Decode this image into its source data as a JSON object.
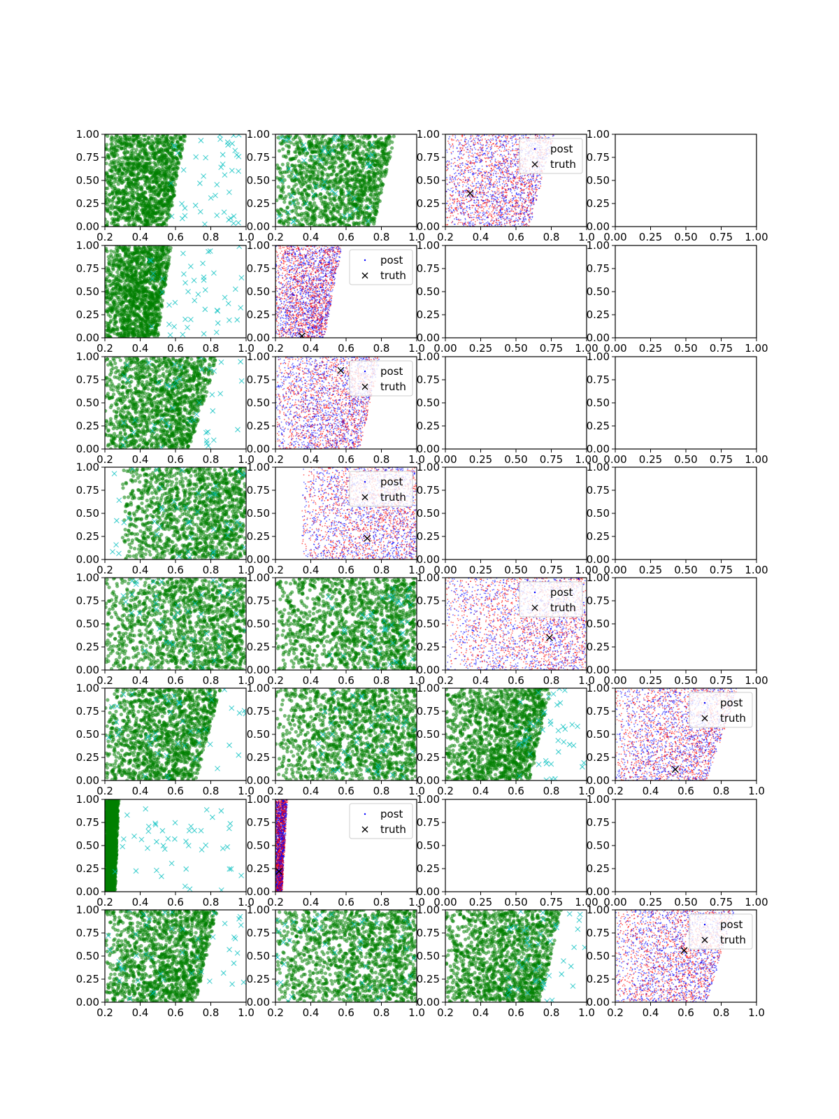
{
  "figure": {
    "rows": 8,
    "cols": 4,
    "legend_labels": {
      "post": "post",
      "truth": "truth"
    },
    "colors": {
      "green_points": "#008000",
      "cyan_crosses": "#00bfbf",
      "post_blue": "#0000ff",
      "post_red": "#ff0000",
      "truth_marker": "#000000"
    }
  },
  "chart_data": {
    "type": "scatter",
    "layout": "8x4 grid of scatter subplots",
    "panels": [
      {
        "row": 0,
        "col": 0,
        "kind": "green",
        "xlim": [
          0.2,
          1.0
        ],
        "ylim": [
          0,
          1
        ],
        "xticks": [
          "0.2",
          "0.4",
          "0.6",
          "0.8",
          "1.0"
        ],
        "yticks": [
          "0.00",
          "0.25",
          "0.50",
          "0.75",
          "1.00"
        ],
        "band": {
          "x_left": 0.2,
          "x_right_bottom": 0.56,
          "x_right_top": 0.66
        },
        "crosses_x": [
          0.55,
          0.98
        ]
      },
      {
        "row": 0,
        "col": 1,
        "kind": "green",
        "xlim": [
          0.2,
          1.0
        ],
        "ylim": [
          0,
          1
        ],
        "xticks": [
          "0.2",
          "0.4",
          "0.6",
          "0.8",
          "1.0"
        ],
        "yticks": [
          "0.00",
          "0.25",
          "0.50",
          "0.75",
          "1.00"
        ],
        "band": {
          "x_left": 0.2,
          "x_right_bottom": 0.76,
          "x_right_top": 0.88
        },
        "crosses_x": [
          0.22,
          0.75
        ]
      },
      {
        "row": 0,
        "col": 2,
        "kind": "post",
        "xlim": [
          0.2,
          1.0
        ],
        "ylim": [
          0,
          1
        ],
        "xticks": [
          "0.2",
          "0.4",
          "0.6",
          "0.8",
          "1.0"
        ],
        "yticks": [
          "0.00",
          "0.25",
          "0.50",
          "0.75",
          "1.00"
        ],
        "band": {
          "x_left": 0.2,
          "x_right_bottom": 0.68,
          "x_right_top": 0.82
        },
        "truth": {
          "x": 0.34,
          "y": 0.36
        },
        "legend": "upper-right"
      },
      {
        "row": 0,
        "col": 3,
        "kind": "empty",
        "xlim": [
          0,
          1
        ],
        "ylim": [
          0,
          1
        ],
        "xticks": [
          "0.00",
          "0.25",
          "0.50",
          "0.75",
          "1.00"
        ],
        "yticks": [
          "0.00",
          "0.25",
          "0.50",
          "0.75",
          "1.00"
        ]
      },
      {
        "row": 1,
        "col": 0,
        "kind": "green",
        "xlim": [
          0.2,
          1.0
        ],
        "ylim": [
          0,
          1
        ],
        "xticks": [
          "0.2",
          "0.4",
          "0.6",
          "0.8",
          "1.0"
        ],
        "yticks": [
          "0.00",
          "0.25",
          "0.50",
          "0.75",
          "1.00"
        ],
        "band": {
          "x_left": 0.2,
          "x_right_bottom": 0.5,
          "x_right_top": 0.58
        },
        "crosses_x": [
          0.45,
          0.98
        ]
      },
      {
        "row": 1,
        "col": 1,
        "kind": "post",
        "xlim": [
          0.2,
          1.0
        ],
        "ylim": [
          0,
          1
        ],
        "xticks": [
          "0.2",
          "0.4",
          "0.6",
          "0.8",
          "1.0"
        ],
        "yticks": [
          "0.00",
          "0.25",
          "0.50",
          "0.75",
          "1.00"
        ],
        "band": {
          "x_left": 0.2,
          "x_right_bottom": 0.48,
          "x_right_top": 0.58
        },
        "truth": {
          "x": 0.35,
          "y": 0.02
        },
        "legend": "upper-right"
      },
      {
        "row": 1,
        "col": 2,
        "kind": "empty",
        "xlim": [
          0,
          1
        ],
        "ylim": [
          0,
          1
        ],
        "xticks": [
          "0.00",
          "0.25",
          "0.50",
          "0.75",
          "1.00"
        ],
        "yticks": [
          "0.00",
          "0.25",
          "0.50",
          "0.75",
          "1.00"
        ]
      },
      {
        "row": 1,
        "col": 3,
        "kind": "empty",
        "xlim": [
          0,
          1
        ],
        "ylim": [
          0,
          1
        ],
        "xticks": [
          "0.00",
          "0.25",
          "0.50",
          "0.75",
          "1.00"
        ],
        "yticks": [
          "0.00",
          "0.25",
          "0.50",
          "0.75",
          "1.00"
        ]
      },
      {
        "row": 2,
        "col": 0,
        "kind": "green",
        "xlim": [
          0.2,
          1.0
        ],
        "ylim": [
          0,
          1
        ],
        "xticks": [
          "0.2",
          "0.4",
          "0.6",
          "0.8",
          "1.0"
        ],
        "yticks": [
          "0.00",
          "0.25",
          "0.50",
          "0.75",
          "1.00"
        ],
        "band": {
          "x_left": 0.2,
          "x_right_bottom": 0.68,
          "x_right_top": 0.84
        },
        "crosses_x": [
          0.3,
          0.98
        ]
      },
      {
        "row": 2,
        "col": 1,
        "kind": "post",
        "xlim": [
          0.2,
          1.0
        ],
        "ylim": [
          0,
          1
        ],
        "xticks": [
          "0.2",
          "0.4",
          "0.6",
          "0.8",
          "1.0"
        ],
        "yticks": [
          "0.00",
          "0.25",
          "0.50",
          "0.75",
          "1.00"
        ],
        "band": {
          "x_left": 0.2,
          "x_right_bottom": 0.68,
          "x_right_top": 0.8
        },
        "truth": {
          "x": 0.57,
          "y": 0.85
        },
        "legend": "upper-right"
      },
      {
        "row": 2,
        "col": 2,
        "kind": "empty",
        "xlim": [
          0,
          1
        ],
        "ylim": [
          0,
          1
        ],
        "xticks": [
          "0.00",
          "0.25",
          "0.50",
          "0.75",
          "1.00"
        ],
        "yticks": [
          "0.00",
          "0.25",
          "0.50",
          "0.75",
          "1.00"
        ]
      },
      {
        "row": 2,
        "col": 3,
        "kind": "empty",
        "xlim": [
          0,
          1
        ],
        "ylim": [
          0,
          1
        ],
        "xticks": [
          "0.00",
          "0.25",
          "0.50",
          "0.75",
          "1.00"
        ],
        "yticks": [
          "0.00",
          "0.25",
          "0.50",
          "0.75",
          "1.00"
        ]
      },
      {
        "row": 3,
        "col": 0,
        "kind": "green",
        "xlim": [
          0.2,
          1.0
        ],
        "ylim": [
          0,
          1
        ],
        "xticks": [
          "0.2",
          "0.4",
          "0.6",
          "0.8",
          "1.0"
        ],
        "yticks": [
          "0.00",
          "0.25",
          "0.50",
          "0.75",
          "1.00"
        ],
        "band": {
          "x_left": 0.3,
          "x_right_bottom": 1.0,
          "x_right_top": 1.0
        },
        "crosses_x": [
          0.2,
          1.0
        ]
      },
      {
        "row": 3,
        "col": 1,
        "kind": "post",
        "xlim": [
          0.2,
          1.0
        ],
        "ylim": [
          0,
          1
        ],
        "xticks": [
          "0.2",
          "0.4",
          "0.6",
          "0.8",
          "1.0"
        ],
        "yticks": [
          "0.00",
          "0.25",
          "0.50",
          "0.75",
          "1.00"
        ],
        "band": {
          "x_left": 0.35,
          "x_right_bottom": 1.0,
          "x_right_top": 1.0
        },
        "truth": {
          "x": 0.72,
          "y": 0.23
        },
        "legend": "upper-right"
      },
      {
        "row": 3,
        "col": 2,
        "kind": "empty",
        "xlim": [
          0,
          1
        ],
        "ylim": [
          0,
          1
        ],
        "xticks": [
          "0.00",
          "0.25",
          "0.50",
          "0.75",
          "1.00"
        ],
        "yticks": [
          "0.00",
          "0.25",
          "0.50",
          "0.75",
          "1.00"
        ]
      },
      {
        "row": 3,
        "col": 3,
        "kind": "empty",
        "xlim": [
          0,
          1
        ],
        "ylim": [
          0,
          1
        ],
        "xticks": [
          "0.00",
          "0.25",
          "0.50",
          "0.75",
          "1.00"
        ],
        "yticks": [
          "0.00",
          "0.25",
          "0.50",
          "0.75",
          "1.00"
        ]
      },
      {
        "row": 4,
        "col": 0,
        "kind": "green",
        "xlim": [
          0.2,
          1.0
        ],
        "ylim": [
          0,
          1
        ],
        "xticks": [
          "0.2",
          "0.4",
          "0.6",
          "0.8",
          "1.0"
        ],
        "yticks": [
          "0.00",
          "0.25",
          "0.50",
          "0.75",
          "1.00"
        ],
        "band": {
          "x_left": 0.2,
          "x_right_bottom": 1.0,
          "x_right_top": 1.0
        },
        "crosses_x": [
          0.3,
          1.0
        ]
      },
      {
        "row": 4,
        "col": 1,
        "kind": "green",
        "xlim": [
          0.2,
          1.0
        ],
        "ylim": [
          0,
          1
        ],
        "xticks": [
          "0.2",
          "0.4",
          "0.6",
          "0.8",
          "1.0"
        ],
        "yticks": [
          "0.00",
          "0.25",
          "0.50",
          "0.75",
          "1.00"
        ],
        "band": {
          "x_left": 0.2,
          "x_right_bottom": 1.0,
          "x_right_top": 1.0
        },
        "crosses_x": [
          0.5,
          1.0
        ]
      },
      {
        "row": 4,
        "col": 2,
        "kind": "post",
        "xlim": [
          0.2,
          1.0
        ],
        "ylim": [
          0,
          1
        ],
        "xticks": [
          "0.2",
          "0.4",
          "0.6",
          "0.8",
          "1.0"
        ],
        "yticks": [
          "0.00",
          "0.25",
          "0.50",
          "0.75",
          "1.00"
        ],
        "band": {
          "x_left": 0.2,
          "x_right_bottom": 1.0,
          "x_right_top": 1.0
        },
        "truth": {
          "x": 0.79,
          "y": 0.35
        },
        "legend": "upper-right"
      },
      {
        "row": 4,
        "col": 3,
        "kind": "empty",
        "xlim": [
          0,
          1
        ],
        "ylim": [
          0,
          1
        ],
        "xticks": [
          "0.00",
          "0.25",
          "0.50",
          "0.75",
          "1.00"
        ],
        "yticks": [
          "0.00",
          "0.25",
          "0.50",
          "0.75",
          "1.00"
        ]
      },
      {
        "row": 5,
        "col": 0,
        "kind": "green",
        "xlim": [
          0.2,
          1.0
        ],
        "ylim": [
          0,
          1
        ],
        "xticks": [
          "0.2",
          "0.4",
          "0.6",
          "0.8",
          "1.0"
        ],
        "yticks": [
          "0.00",
          "0.25",
          "0.50",
          "0.75",
          "1.00"
        ],
        "band": {
          "x_left": 0.2,
          "x_right_bottom": 0.72,
          "x_right_top": 0.86
        },
        "crosses_x": [
          0.2,
          1.0
        ]
      },
      {
        "row": 5,
        "col": 1,
        "kind": "green",
        "xlim": [
          0.2,
          1.0
        ],
        "ylim": [
          0,
          1
        ],
        "xticks": [
          "0.2",
          "0.4",
          "0.6",
          "0.8",
          "1.0"
        ],
        "yticks": [
          "0.00",
          "0.25",
          "0.50",
          "0.75",
          "1.00"
        ],
        "band": {
          "x_left": 0.2,
          "x_right_bottom": 1.0,
          "x_right_top": 1.0
        },
        "crosses_x": [
          0.4,
          1.0
        ]
      },
      {
        "row": 5,
        "col": 2,
        "kind": "green",
        "xlim": [
          0.2,
          1.0
        ],
        "ylim": [
          0,
          1
        ],
        "xticks": [
          "0.2",
          "0.4",
          "0.6",
          "0.8",
          "1.0"
        ],
        "yticks": [
          "0.00",
          "0.25",
          "0.50",
          "0.75",
          "1.00"
        ],
        "band": {
          "x_left": 0.2,
          "x_right_bottom": 0.68,
          "x_right_top": 0.8
        },
        "crosses_x": [
          0.6,
          1.0
        ]
      },
      {
        "row": 5,
        "col": 3,
        "kind": "post",
        "xlim": [
          0.2,
          1.0
        ],
        "ylim": [
          0,
          1
        ],
        "xticks": [
          "0.2",
          "0.4",
          "0.6",
          "0.8",
          "1.0"
        ],
        "yticks": [
          "0.00",
          "0.25",
          "0.50",
          "0.75",
          "1.00"
        ],
        "band": {
          "x_left": 0.2,
          "x_right_bottom": 0.72,
          "x_right_top": 0.9
        },
        "truth": {
          "x": 0.54,
          "y": 0.12
        },
        "legend": "upper-right"
      },
      {
        "row": 6,
        "col": 0,
        "kind": "green",
        "xlim": [
          0.2,
          1.0
        ],
        "ylim": [
          0,
          1
        ],
        "xticks": [
          "0.2",
          "0.4",
          "0.6",
          "0.8",
          "1.0"
        ],
        "yticks": [
          "0.00",
          "0.25",
          "0.50",
          "0.75",
          "1.00"
        ],
        "band": {
          "x_left": 0.2,
          "x_right_bottom": 0.26,
          "x_right_top": 0.28
        },
        "crosses_x": [
          0.25,
          1.0
        ]
      },
      {
        "row": 6,
        "col": 1,
        "kind": "post",
        "xlim": [
          0.2,
          1.0
        ],
        "ylim": [
          0,
          1
        ],
        "xticks": [
          "0.2",
          "0.4",
          "0.6",
          "0.8",
          "1.0"
        ],
        "yticks": [
          "0.00",
          "0.25",
          "0.50",
          "0.75",
          "1.00"
        ],
        "band": {
          "x_left": 0.2,
          "x_right_bottom": 0.24,
          "x_right_top": 0.27
        },
        "truth": {
          "x": 0.22,
          "y": 0.22
        },
        "legend": "upper-right"
      },
      {
        "row": 6,
        "col": 2,
        "kind": "empty",
        "xlim": [
          0,
          1
        ],
        "ylim": [
          0,
          1
        ],
        "xticks": [
          "0.00",
          "0.25",
          "0.50",
          "0.75",
          "1.00"
        ],
        "yticks": [
          "0.00",
          "0.25",
          "0.50",
          "0.75",
          "1.00"
        ]
      },
      {
        "row": 6,
        "col": 3,
        "kind": "empty",
        "xlim": [
          0,
          1
        ],
        "ylim": [
          0,
          1
        ],
        "xticks": [
          "0.00",
          "0.25",
          "0.50",
          "0.75",
          "1.00"
        ],
        "yticks": [
          "0.00",
          "0.25",
          "0.50",
          "0.75",
          "1.00"
        ]
      },
      {
        "row": 7,
        "col": 0,
        "kind": "green",
        "xlim": [
          0.2,
          1.0
        ],
        "ylim": [
          0,
          1
        ],
        "xticks": [
          "0.2",
          "0.4",
          "0.6",
          "0.8",
          "1.0"
        ],
        "yticks": [
          "0.00",
          "0.25",
          "0.50",
          "0.75",
          "1.00"
        ],
        "band": {
          "x_left": 0.2,
          "x_right_bottom": 0.72,
          "x_right_top": 0.84
        },
        "crosses_x": [
          0.2,
          1.0
        ]
      },
      {
        "row": 7,
        "col": 1,
        "kind": "green",
        "xlim": [
          0.2,
          1.0
        ],
        "ylim": [
          0,
          1
        ],
        "xticks": [
          "0.2",
          "0.4",
          "0.6",
          "0.8",
          "1.0"
        ],
        "yticks": [
          "0.00",
          "0.25",
          "0.50",
          "0.75",
          "1.00"
        ],
        "band": {
          "x_left": 0.2,
          "x_right_bottom": 1.0,
          "x_right_top": 1.0
        },
        "crosses_x": [
          0.2,
          1.0
        ]
      },
      {
        "row": 7,
        "col": 2,
        "kind": "green",
        "xlim": [
          0.2,
          1.0
        ],
        "ylim": [
          0,
          1
        ],
        "xticks": [
          "0.2",
          "0.4",
          "0.6",
          "0.8",
          "1.0"
        ],
        "yticks": [
          "0.00",
          "0.25",
          "0.50",
          "0.75",
          "1.00"
        ],
        "band": {
          "x_left": 0.2,
          "x_right_bottom": 0.74,
          "x_right_top": 0.86
        },
        "crosses_x": [
          0.55,
          1.0
        ]
      },
      {
        "row": 7,
        "col": 3,
        "kind": "post",
        "xlim": [
          0.2,
          1.0
        ],
        "ylim": [
          0,
          1
        ],
        "xticks": [
          "0.2",
          "0.4",
          "0.6",
          "0.8",
          "1.0"
        ],
        "yticks": [
          "0.00",
          "0.25",
          "0.50",
          "0.75",
          "1.00"
        ],
        "band": {
          "x_left": 0.2,
          "x_right_bottom": 0.72,
          "x_right_top": 0.88
        },
        "truth": {
          "x": 0.59,
          "y": 0.56
        },
        "legend": "upper-right"
      }
    ]
  }
}
